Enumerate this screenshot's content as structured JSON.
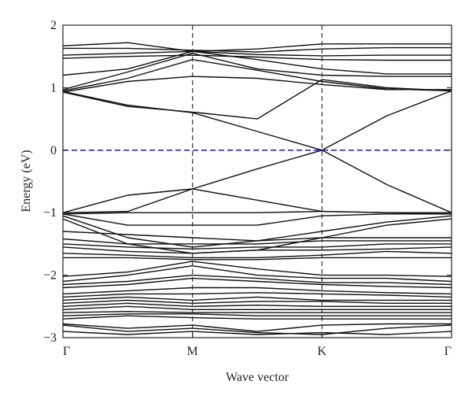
{
  "chart_data": {
    "type": "line",
    "title": "",
    "xlabel": "Wave vector",
    "ylabel": "Energy (eV)",
    "x_ticks": [
      "Γ",
      "M",
      "K",
      "Γ"
    ],
    "x": [
      0,
      0.5,
      1,
      1.5,
      2,
      2.5,
      3
    ],
    "xlim": [
      0,
      3
    ],
    "ylim": [
      -3,
      2
    ],
    "y_ticks": [
      -3,
      -2,
      -1,
      0,
      1,
      2
    ],
    "fermi_level": 0,
    "high_symmetry_lines_at": [
      1,
      2
    ],
    "grid": false,
    "legend": "none",
    "colors": {
      "bands": "#111111",
      "fermi": "#2a2acc",
      "symmetry": "#333333"
    },
    "series": [
      {
        "values": [
          1.67,
          1.72,
          1.58,
          1.62,
          1.7,
          1.7,
          1.7
        ]
      },
      {
        "values": [
          1.63,
          1.63,
          1.6,
          1.57,
          1.62,
          1.64,
          1.64
        ]
      },
      {
        "values": [
          1.52,
          1.55,
          1.58,
          1.53,
          1.51,
          1.52,
          1.52
        ]
      },
      {
        "values": [
          1.47,
          1.5,
          1.52,
          1.49,
          1.45,
          1.44,
          1.44
        ]
      },
      {
        "values": [
          1.2,
          1.3,
          1.58,
          1.45,
          1.3,
          1.22,
          1.22
        ]
      },
      {
        "values": [
          0.97,
          1.25,
          1.55,
          1.3,
          1.2,
          1.18,
          1.18
        ]
      },
      {
        "values": [
          0.95,
          1.15,
          1.45,
          1.28,
          1.1,
          0.98,
          0.95
        ]
      },
      {
        "values": [
          0.93,
          1.1,
          1.18,
          1.15,
          1.05,
          0.97,
          0.97
        ]
      },
      {
        "values": [
          0.94,
          0.72,
          0.6,
          0.3,
          0.0,
          0.55,
          0.95
        ]
      },
      {
        "values": [
          0.93,
          0.7,
          0.61,
          0.5,
          1.13,
          1.0,
          0.95
        ]
      },
      {
        "values": [
          -1.0,
          -0.72,
          -0.62,
          -0.3,
          0.0,
          -0.55,
          -1.0
        ]
      },
      {
        "values": [
          -1.0,
          -0.98,
          -0.62,
          -0.8,
          -0.98,
          -1.0,
          -1.0
        ]
      },
      {
        "values": [
          -1.02,
          -1.0,
          -1.0,
          -1.0,
          -0.98,
          -1.0,
          -1.02
        ]
      },
      {
        "values": [
          -1.02,
          -1.2,
          -1.2,
          -1.2,
          -1.05,
          -1.02,
          -1.02
        ]
      },
      {
        "values": [
          -1.05,
          -1.4,
          -1.55,
          -1.45,
          -1.3,
          -1.15,
          -1.05
        ]
      },
      {
        "values": [
          -1.1,
          -1.5,
          -1.65,
          -1.6,
          -1.4,
          -1.2,
          -1.1
        ]
      },
      {
        "values": [
          -1.3,
          -1.35,
          -1.4,
          -1.45,
          -1.4,
          -1.4,
          -1.4
        ]
      },
      {
        "values": [
          -1.42,
          -1.5,
          -1.5,
          -1.5,
          -1.45,
          -1.45,
          -1.45
        ]
      },
      {
        "values": [
          -1.5,
          -1.55,
          -1.58,
          -1.55,
          -1.55,
          -1.5,
          -1.5
        ]
      },
      {
        "values": [
          -1.55,
          -1.62,
          -1.65,
          -1.6,
          -1.6,
          -1.58,
          -1.55
        ]
      },
      {
        "values": [
          -1.65,
          -1.68,
          -1.72,
          -1.72,
          -1.68,
          -1.62,
          -1.65
        ]
      },
      {
        "values": [
          -1.72,
          -1.72,
          -1.75,
          -1.75,
          -1.72,
          -1.72,
          -1.72
        ]
      },
      {
        "values": [
          -2.02,
          -1.95,
          -1.78,
          -1.9,
          -2.0,
          -2.0,
          -2.02
        ]
      },
      {
        "values": [
          -2.1,
          -2.0,
          -1.85,
          -2.0,
          -2.05,
          -2.05,
          -2.1
        ]
      },
      {
        "values": [
          -2.15,
          -2.1,
          -2.0,
          -2.05,
          -2.12,
          -2.12,
          -2.15
        ]
      },
      {
        "values": [
          -2.2,
          -2.15,
          -2.05,
          -2.1,
          -2.15,
          -2.18,
          -2.2
        ]
      },
      {
        "values": [
          -2.3,
          -2.25,
          -2.2,
          -2.2,
          -2.25,
          -2.28,
          -2.3
        ]
      },
      {
        "values": [
          -2.35,
          -2.3,
          -2.3,
          -2.28,
          -2.3,
          -2.32,
          -2.35
        ]
      },
      {
        "values": [
          -2.4,
          -2.35,
          -2.4,
          -2.35,
          -2.4,
          -2.4,
          -2.4
        ]
      },
      {
        "values": [
          -2.45,
          -2.4,
          -2.45,
          -2.42,
          -2.42,
          -2.45,
          -2.45
        ]
      },
      {
        "values": [
          -2.5,
          -2.45,
          -2.5,
          -2.48,
          -2.5,
          -2.5,
          -2.5
        ]
      },
      {
        "values": [
          -2.55,
          -2.5,
          -2.55,
          -2.55,
          -2.55,
          -2.55,
          -2.55
        ]
      },
      {
        "values": [
          -2.6,
          -2.58,
          -2.6,
          -2.6,
          -2.6,
          -2.6,
          -2.6
        ]
      },
      {
        "values": [
          -2.65,
          -2.62,
          -2.62,
          -2.65,
          -2.65,
          -2.65,
          -2.65
        ]
      },
      {
        "values": [
          -2.7,
          -2.65,
          -2.68,
          -2.7,
          -2.7,
          -2.7,
          -2.7
        ]
      },
      {
        "values": [
          -2.78,
          -2.85,
          -2.8,
          -2.9,
          -2.8,
          -2.78,
          -2.78
        ]
      },
      {
        "values": [
          -2.8,
          -2.9,
          -2.85,
          -2.92,
          -2.95,
          -2.85,
          -2.8
        ]
      },
      {
        "values": [
          -2.9,
          -2.95,
          -2.9,
          -2.95,
          -2.92,
          -2.95,
          -2.9
        ]
      }
    ]
  }
}
